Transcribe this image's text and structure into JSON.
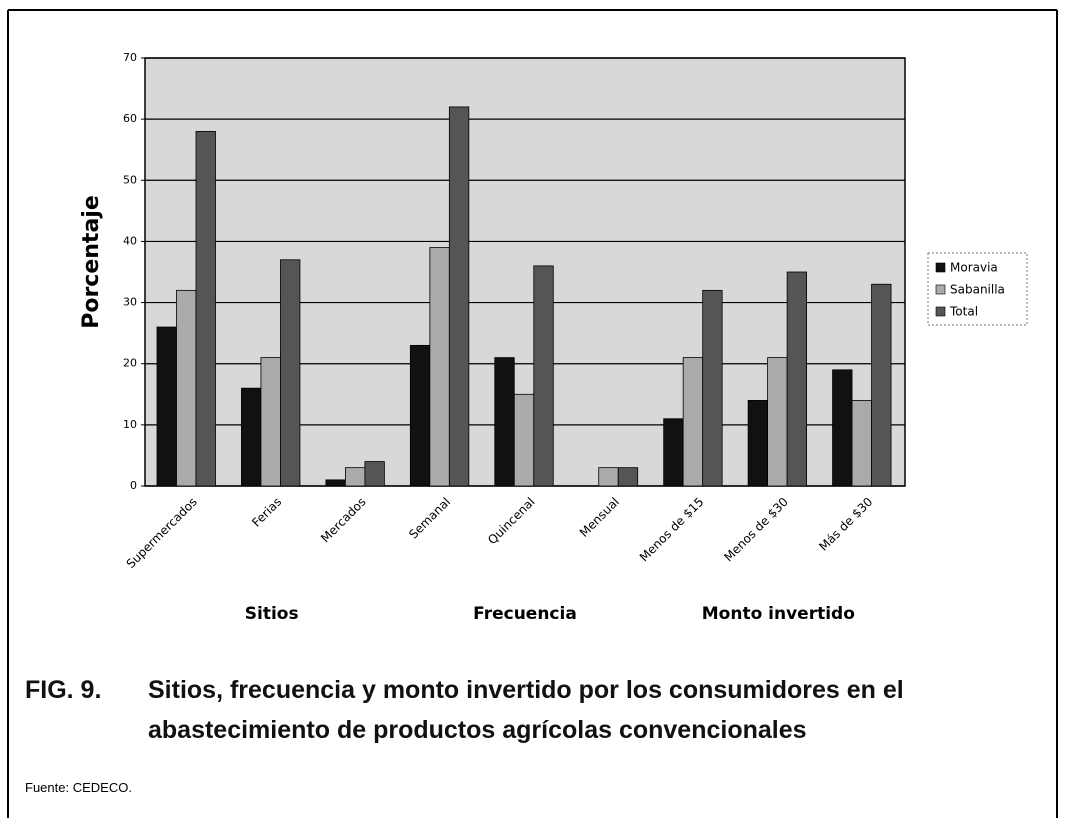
{
  "chart_data": {
    "type": "bar",
    "y_label": "Porcentaje",
    "categories": [
      "Supermercados",
      "Ferias",
      "Mercados",
      "Semanal",
      "Quincenal",
      "Mensual",
      "Menos de $15",
      "Menos de $30",
      "Más de $30"
    ],
    "category_groups": [
      "Sitios",
      "Frecuencia",
      "Monto invertido"
    ],
    "series": [
      {
        "name": "Moravia",
        "color": "#111111",
        "values": [
          26,
          16,
          1,
          23,
          21,
          0,
          11,
          14,
          19
        ]
      },
      {
        "name": "Sabanilla",
        "color": "#aaaaaa",
        "values": [
          32,
          21,
          3,
          39,
          15,
          3,
          21,
          21,
          14
        ]
      },
      {
        "name": "Total",
        "color": "#555555",
        "values": [
          58,
          37,
          4,
          62,
          36,
          3,
          32,
          35,
          33
        ]
      }
    ],
    "ylim": [
      0,
      70
    ],
    "yticks": [
      0,
      10,
      20,
      30,
      40,
      50,
      60,
      70
    ],
    "grid": true,
    "legend": "right"
  },
  "caption": {
    "label": "FIG. 9.",
    "text": "Sitios, frecuencia y monto invertido por los consumidores en el abastecimiento de productos agrícolas convencionales"
  },
  "source": "Fuente: CEDECO."
}
